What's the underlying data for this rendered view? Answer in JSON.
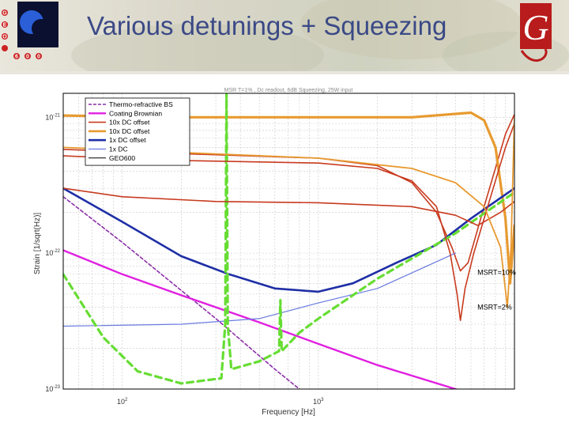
{
  "slide": {
    "title": "Various detunings + Squeezing",
    "left_logo_letters": [
      "G",
      "E",
      "O",
      "6",
      "0",
      "0"
    ],
    "right_logo_letter": "G"
  },
  "chart_data": {
    "type": "line",
    "title": "MSR T=1% , Dc readout, 6dB Squeezing, 25W input",
    "xlabel": "Frequency [Hz]",
    "ylabel": "Strain [1/sqrt(Hz)]",
    "x_scale": "log",
    "y_scale": "log",
    "xlim": [
      50,
      10000
    ],
    "ylim": [
      1e-23,
      1.5e-21
    ],
    "x_ticks": [
      {
        "value": 100,
        "base": "10",
        "exp": "2"
      },
      {
        "value": 1000,
        "base": "10",
        "exp": "3"
      }
    ],
    "y_ticks": [
      {
        "value": 1e-21,
        "base": "10",
        "exp": "-21"
      },
      {
        "value": 1e-22,
        "base": "10",
        "exp": "-22"
      },
      {
        "value": 1e-23,
        "base": "10",
        "exp": "-23"
      }
    ],
    "grid": true,
    "legend_position": "top-left",
    "colors": {
      "background": "#ffffff",
      "grid": "#c8c8c8",
      "axis": "#000000"
    },
    "series": [
      {
        "name": "Thermo-refractive BS",
        "color": "#8b2fa8",
        "dash": true,
        "width": 1.6,
        "points": [
          [
            50,
            2.6e-22
          ],
          [
            100,
            1.2e-22
          ],
          [
            300,
            3.3e-23
          ],
          [
            600,
            1.4e-23
          ],
          [
            800,
            1e-23
          ]
        ]
      },
      {
        "name": "Coating Brownian",
        "color": "#e020e0",
        "dash": false,
        "width": 2.4,
        "points": [
          [
            50,
            1.05e-22
          ],
          [
            100,
            7e-23
          ],
          [
            200,
            4.9e-23
          ],
          [
            500,
            3.1e-23
          ],
          [
            1000,
            2.15e-23
          ],
          [
            2000,
            1.5e-23
          ],
          [
            5000,
            1e-23
          ],
          [
            8500,
            7.5e-24
          ]
        ]
      },
      {
        "name": "10x DC offset",
        "color": "#c83a1e",
        "dash": false,
        "width": 1.6,
        "points": [
          [
            50,
            5.8e-22
          ],
          [
            200,
            5.4e-22
          ],
          [
            1000,
            5e-22
          ],
          [
            2000,
            4.4e-22
          ],
          [
            3000,
            3.3e-22
          ],
          [
            4000,
            2e-22
          ],
          [
            4800,
            1.1e-22
          ],
          [
            5300,
            7.4e-23
          ],
          [
            5800,
            8.5e-23
          ],
          [
            7000,
            2.2e-22
          ],
          [
            9000,
            7.5e-22
          ],
          [
            10000,
            1.05e-21
          ]
        ]
      },
      {
        "name": "10x DC offset",
        "color": "#e89a30",
        "dash": false,
        "width": 3.2,
        "points": [
          [
            50,
            1.03e-21
          ],
          [
            200,
            1e-21
          ],
          [
            1000,
            1e-21
          ],
          [
            3000,
            1e-21
          ],
          [
            6000,
            1.08e-21
          ],
          [
            7000,
            9.5e-22
          ],
          [
            8000,
            6e-22
          ],
          [
            9000,
            1.8e-22
          ],
          [
            9500,
            6e-23
          ],
          [
            10000,
            1.6e-22
          ]
        ]
      },
      {
        "name": "1x DC offset",
        "color": "#1f2fa6",
        "dash": false,
        "width": 2.6,
        "points": [
          [
            50,
            3e-22
          ],
          [
            100,
            1.7e-22
          ],
          [
            200,
            9.5e-23
          ],
          [
            350,
            7e-23
          ],
          [
            600,
            5.5e-23
          ],
          [
            1000,
            5.2e-23
          ],
          [
            1500,
            6e-23
          ],
          [
            2500,
            8.5e-23
          ],
          [
            4000,
            1.15e-22
          ],
          [
            6000,
            1.8e-22
          ],
          [
            10000,
            3e-22
          ]
        ]
      },
      {
        "name": "1x DC",
        "color": "#6a7be0",
        "dash": false,
        "width": 1.2,
        "points": [
          [
            50,
            2.9e-23
          ],
          [
            200,
            3e-23
          ],
          [
            500,
            3.3e-23
          ],
          [
            1000,
            4.3e-23
          ],
          [
            2000,
            5.5e-23
          ],
          [
            5000,
            1e-22
          ]
        ]
      },
      {
        "name": "GEO600",
        "color": "#000000",
        "dash": false,
        "width": 1.0,
        "points": []
      },
      {
        "name": "",
        "color": "#66dd33",
        "dash": true,
        "width": 3.2,
        "points": [
          [
            50,
            7e-23
          ],
          [
            80,
            2.4e-23
          ],
          [
            120,
            1.35e-23
          ],
          [
            200,
            1.1e-23
          ],
          [
            320,
            1.2e-23
          ],
          [
            335,
            3e-23
          ],
          [
            340,
            1.5e-21
          ],
          [
            345,
            3e-23
          ],
          [
            360,
            1.4e-23
          ],
          [
            500,
            1.6e-23
          ],
          [
            630,
            1.9e-23
          ],
          [
            640,
            4.5e-23
          ],
          [
            650,
            1.9e-23
          ],
          [
            800,
            2.6e-23
          ],
          [
            1000,
            3.3e-23
          ],
          [
            2000,
            6.5e-23
          ],
          [
            5000,
            1.4e-22
          ],
          [
            10000,
            2.8e-22
          ]
        ]
      },
      {
        "name": "",
        "color": "#c83a1e",
        "dash": false,
        "width": 1.6,
        "points": [
          [
            50,
            5.2e-22
          ],
          [
            200,
            4.8e-22
          ],
          [
            1000,
            4.6e-22
          ],
          [
            2000,
            4.2e-22
          ],
          [
            3000,
            3.4e-22
          ],
          [
            4000,
            2.2e-22
          ],
          [
            4700,
            1e-22
          ],
          [
            5100,
            5e-23
          ],
          [
            5300,
            3.2e-23
          ],
          [
            5600,
            5.5e-23
          ],
          [
            6200,
            1e-22
          ],
          [
            7500,
            2.5e-22
          ],
          [
            9000,
            6e-22
          ],
          [
            10000,
            9e-22
          ]
        ]
      },
      {
        "name": "",
        "color": "#c83a1e",
        "dash": false,
        "width": 1.6,
        "points": [
          [
            50,
            3e-22
          ],
          [
            100,
            2.6e-22
          ],
          [
            300,
            2.4e-22
          ],
          [
            1000,
            2.35e-22
          ],
          [
            3000,
            2.2e-22
          ],
          [
            5000,
            1.9e-22
          ],
          [
            6500,
            1.6e-22
          ],
          [
            8500,
            2e-22
          ],
          [
            10000,
            2.4e-22
          ]
        ]
      },
      {
        "name": "",
        "color": "#e89a30",
        "dash": false,
        "width": 1.8,
        "points": [
          [
            50,
            6e-22
          ],
          [
            200,
            5.5e-22
          ],
          [
            1000,
            5e-22
          ],
          [
            3000,
            4.2e-22
          ],
          [
            5000,
            3.3e-22
          ],
          [
            7000,
            2.2e-22
          ],
          [
            8500,
            1.1e-22
          ],
          [
            9200,
            4e-23
          ],
          [
            9600,
            1.1e-22
          ],
          [
            10000,
            1e-21
          ]
        ]
      }
    ],
    "annotations": [
      {
        "text": "MSRT=10%",
        "x": 5900,
        "y": 7.2e-23
      },
      {
        "text": "MSRT=2%",
        "x": 5900,
        "y": 4e-23
      }
    ]
  }
}
